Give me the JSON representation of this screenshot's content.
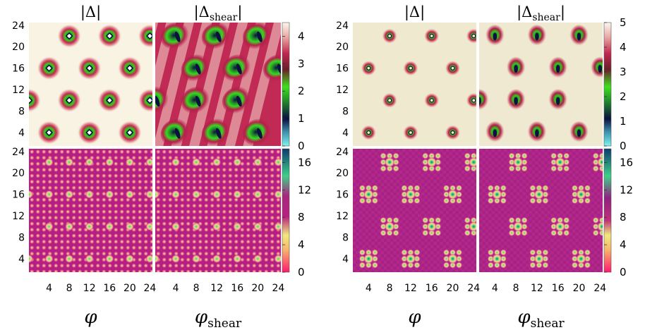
{
  "chart_data": [
    {
      "type": "heatmap",
      "panel": "left",
      "columns": [
        {
          "title": "|Δ|",
          "xlabel_main": "φ",
          "xlabel_sub": ""
        },
        {
          "title": "|Δ",
          "title_sub": "shear",
          "title_end": "|",
          "xlabel_main": "φ",
          "xlabel_sub": "shear"
        }
      ],
      "xticks": [
        "4",
        "8",
        "12",
        "16",
        "20",
        "24"
      ],
      "xrange": [
        0,
        24.5
      ],
      "yticks": [
        "4",
        "8",
        "12",
        "16",
        "20",
        "24"
      ],
      "yrange": [
        1.5,
        24.5
      ],
      "top_row": {
        "quantity": "order parameter magnitude",
        "colorbar_ticks": [
          "0",
          "1",
          "2",
          "3",
          "4"
        ],
        "colorbar_range": [
          0,
          4.5
        ],
        "vortices_plain": [
          [
            8,
            22
          ],
          [
            16,
            22
          ],
          [
            24,
            22
          ],
          [
            4,
            16
          ],
          [
            12,
            16
          ],
          [
            20,
            16
          ],
          [
            0,
            10
          ],
          [
            8,
            10
          ],
          [
            16,
            10
          ],
          [
            24,
            10
          ],
          [
            4,
            4
          ],
          [
            12,
            4
          ],
          [
            20,
            4
          ]
        ],
        "vortices_shear": [
          [
            4,
            22
          ],
          [
            12,
            22
          ],
          [
            20,
            22
          ],
          [
            8,
            16
          ],
          [
            16,
            16
          ],
          [
            24,
            16
          ],
          [
            0,
            10
          ],
          [
            8,
            10
          ],
          [
            16,
            10
          ],
          [
            4,
            4
          ],
          [
            12,
            4
          ],
          [
            20,
            4
          ]
        ]
      },
      "bottom_row": {
        "quantity": "phase",
        "colorbar_ticks": [
          "0",
          "4",
          "8",
          "12",
          "16"
        ],
        "colorbar_range": [
          0,
          18
        ]
      }
    },
    {
      "type": "heatmap",
      "panel": "right",
      "columns": [
        {
          "title": "|Δ|",
          "xlabel_main": "φ",
          "xlabel_sub": ""
        },
        {
          "title": "|Δ",
          "title_sub": "shear",
          "title_end": "|",
          "xlabel_main": "φ",
          "xlabel_sub": "shear"
        }
      ],
      "xticks": [
        "4",
        "8",
        "12",
        "16",
        "20",
        "24"
      ],
      "xrange": [
        1,
        24.5
      ],
      "yticks": [
        "4",
        "8",
        "12",
        "16",
        "20",
        "24"
      ],
      "yrange": [
        1.5,
        24.5
      ],
      "top_row": {
        "quantity": "order parameter magnitude",
        "colorbar_ticks": [
          "0",
          "1",
          "2",
          "3",
          "4",
          "5"
        ],
        "colorbar_range": [
          0,
          5
        ],
        "vortices_plain": [
          [
            8,
            22
          ],
          [
            16,
            22
          ],
          [
            24,
            22
          ],
          [
            4,
            16
          ],
          [
            12,
            16
          ],
          [
            20,
            16
          ],
          [
            8,
            10
          ],
          [
            16,
            10
          ],
          [
            24,
            10
          ],
          [
            4,
            4
          ],
          [
            12,
            4
          ],
          [
            20,
            4
          ]
        ],
        "vortices_shear": [
          [
            4,
            22
          ],
          [
            12,
            22
          ],
          [
            20,
            22
          ],
          [
            8,
            16
          ],
          [
            16,
            16
          ],
          [
            24,
            16
          ],
          [
            1,
            10
          ],
          [
            8,
            10
          ],
          [
            16,
            10
          ],
          [
            4,
            4
          ],
          [
            12,
            4
          ],
          [
            20,
            4
          ]
        ]
      },
      "bottom_row": {
        "quantity": "phase",
        "colorbar_ticks": [
          "0",
          "4",
          "8",
          "12",
          "16"
        ],
        "colorbar_range": [
          0,
          18
        ],
        "spots": [
          [
            8,
            22
          ],
          [
            16,
            22
          ],
          [
            24,
            22
          ],
          [
            4,
            16
          ],
          [
            12,
            16
          ],
          [
            20,
            16
          ],
          [
            8,
            10
          ],
          [
            16,
            10
          ],
          [
            24,
            10
          ],
          [
            4,
            4
          ],
          [
            12,
            4
          ],
          [
            20,
            4
          ]
        ]
      }
    }
  ]
}
